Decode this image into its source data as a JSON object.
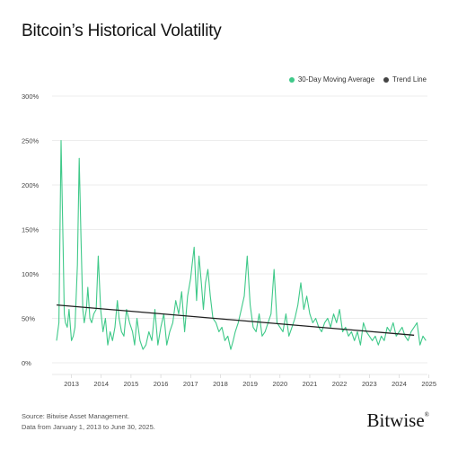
{
  "header": {
    "title": "Bitcoin’s Historical Volatility"
  },
  "legend": [
    {
      "label": "30-Day Moving Average",
      "color": "#3fc989"
    },
    {
      "label": "Trend Line",
      "color": "#444444"
    }
  ],
  "footer": {
    "source": "Source: Bitwise Asset Management.",
    "range_note": "Data from January 1, 2013 to June 30, 2025.",
    "brand": "Bitwise",
    "brand_mark": "®"
  },
  "chart_data": {
    "type": "line",
    "title": "Bitcoin’s Historical Volatility",
    "xlabel": "",
    "ylabel": "",
    "xlim": [
      2012.85,
      2025.45
    ],
    "ylim": [
      0,
      300
    ],
    "y_ticks": [
      "0%",
      "50%",
      "100%",
      "150%",
      "200%",
      "250%",
      "300%"
    ],
    "y_tick_values": [
      0,
      50,
      100,
      150,
      200,
      250,
      300
    ],
    "x_ticks": [
      "2013",
      "2014",
      "2015",
      "2016",
      "2017",
      "2018",
      "2019",
      "2020",
      "2021",
      "2022",
      "2023",
      "2024",
      "2025"
    ],
    "x_tick_values": [
      2013,
      2014,
      2015,
      2016,
      2017,
      2018,
      2019,
      2020,
      2021,
      2022,
      2023,
      2024,
      2025
    ],
    "grid": true,
    "legend_position": "top-right",
    "series": [
      {
        "name": "30-Day Moving Average",
        "color": "#3fc989",
        "x": [
          2013.0,
          2013.08,
          2013.15,
          2013.22,
          2013.26,
          2013.3,
          2013.36,
          2013.42,
          2013.5,
          2013.56,
          2013.62,
          2013.7,
          2013.76,
          2013.82,
          2013.88,
          2013.93,
          2014.0,
          2014.05,
          2014.12,
          2014.18,
          2014.25,
          2014.33,
          2014.4,
          2014.48,
          2014.56,
          2014.64,
          2014.72,
          2014.8,
          2014.88,
          2014.96,
          2015.04,
          2015.1,
          2015.18,
          2015.26,
          2015.35,
          2015.45,
          2015.55,
          2015.62,
          2015.7,
          2015.8,
          2015.9,
          2016.0,
          2016.1,
          2016.2,
          2016.3,
          2016.4,
          2016.5,
          2016.6,
          2016.7,
          2016.8,
          2016.9,
          2017.0,
          2017.1,
          2017.2,
          2017.3,
          2017.4,
          2017.5,
          2017.55,
          2017.62,
          2017.7,
          2017.78,
          2017.86,
          2017.93,
          2018.0,
          2018.08,
          2018.16,
          2018.25,
          2018.35,
          2018.45,
          2018.55,
          2018.65,
          2018.75,
          2018.85,
          2018.93,
          2019.0,
          2019.1,
          2019.2,
          2019.3,
          2019.4,
          2019.5,
          2019.6,
          2019.7,
          2019.8,
          2019.9,
          2020.0,
          2020.1,
          2020.2,
          2020.3,
          2020.4,
          2020.5,
          2020.6,
          2020.7,
          2020.8,
          2020.9,
          2021.0,
          2021.1,
          2021.2,
          2021.3,
          2021.4,
          2021.5,
          2021.6,
          2021.7,
          2021.8,
          2021.9,
          2022.0,
          2022.1,
          2022.2,
          2022.3,
          2022.4,
          2022.5,
          2022.6,
          2022.7,
          2022.8,
          2022.9,
          2023.0,
          2023.1,
          2023.2,
          2023.3,
          2023.4,
          2023.5,
          2023.6,
          2023.7,
          2023.8,
          2023.9,
          2024.0,
          2024.1,
          2024.2,
          2024.3,
          2024.4,
          2024.5,
          2024.6,
          2024.7,
          2024.8,
          2024.9,
          2025.0,
          2025.1,
          2025.2,
          2025.3,
          2025.4
        ],
        "values": [
          25,
          45,
          250,
          130,
          55,
          45,
          40,
          60,
          25,
          30,
          40,
          110,
          230,
          140,
          60,
          45,
          60,
          85,
          50,
          45,
          55,
          60,
          120,
          60,
          35,
          50,
          20,
          35,
          25,
          40,
          70,
          50,
          35,
          30,
          60,
          45,
          35,
          20,
          50,
          25,
          15,
          20,
          35,
          25,
          60,
          20,
          40,
          55,
          20,
          35,
          45,
          70,
          55,
          80,
          35,
          75,
          95,
          110,
          130,
          70,
          120,
          90,
          60,
          90,
          105,
          75,
          50,
          45,
          35,
          40,
          25,
          30,
          15,
          25,
          35,
          45,
          60,
          75,
          120,
          65,
          40,
          35,
          55,
          30,
          35,
          45,
          55,
          105,
          45,
          40,
          35,
          55,
          30,
          40,
          50,
          65,
          90,
          60,
          75,
          55,
          45,
          50,
          40,
          35,
          45,
          50,
          40,
          55,
          45,
          60,
          35,
          40,
          30,
          35,
          25,
          35,
          20,
          45,
          35,
          30,
          25,
          30,
          20,
          30,
          25,
          40,
          35,
          45,
          30,
          35,
          40,
          30,
          25,
          35,
          40,
          45,
          20,
          30,
          25
        ]
      },
      {
        "name": "Trend Line",
        "color": "#1f1f1f",
        "x": [
          2013.0,
          2025.0
        ],
        "values": [
          65,
          31
        ]
      }
    ]
  }
}
